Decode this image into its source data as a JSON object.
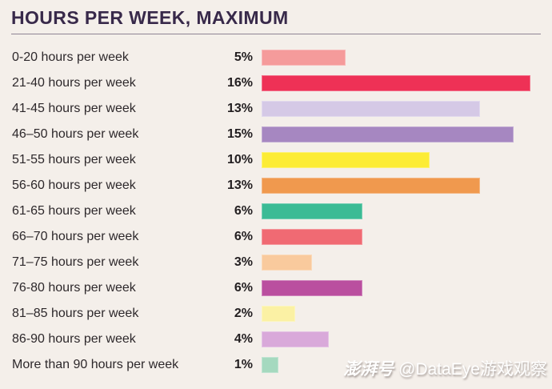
{
  "page": {
    "background_color": "#F4EFEA"
  },
  "header": {
    "title": "HOURS PER WEEK, MAXIMUM",
    "title_color": "#38294A",
    "underline_color": "#8E8494"
  },
  "watermark": {
    "platform": "澎湃号",
    "account": "@DataEye游戏观察"
  },
  "chart_data": {
    "type": "bar",
    "orientation": "horizontal",
    "title": "HOURS PER WEEK, MAXIMUM",
    "categories": [
      "0-20 hours per week",
      "21-40 hours per week",
      "41-45 hours per week",
      "46–50 hours per week",
      "51-55 hours per week",
      "56-60 hours per week",
      "61-65 hours per week",
      "66–70 hours per week",
      "71–75 hours per week",
      "76-80 hours per week",
      "81–85 hours per week",
      "86-90 hours per week",
      "More than 90 hours per week"
    ],
    "values": [
      5,
      16,
      13,
      15,
      10,
      13,
      6,
      6,
      3,
      6,
      2,
      4,
      1
    ],
    "value_labels": [
      "5%",
      "16%",
      "13%",
      "15%",
      "10%",
      "13%",
      "6%",
      "6%",
      "3%",
      "6%",
      "2%",
      "4%",
      "1%"
    ],
    "bar_colors": [
      "#F59B9B",
      "#EE3156",
      "#D5C9E6",
      "#A687C1",
      "#FCEC35",
      "#F0994E",
      "#3BBB95",
      "#F06A73",
      "#F9CA9D",
      "#BA4F9F",
      "#FBF1A4",
      "#D9A9DA",
      "#A5D9BF"
    ],
    "xlim": [
      0,
      16.8
    ],
    "grid": false,
    "legend_position": null,
    "value_label_position": "left-of-bar"
  }
}
